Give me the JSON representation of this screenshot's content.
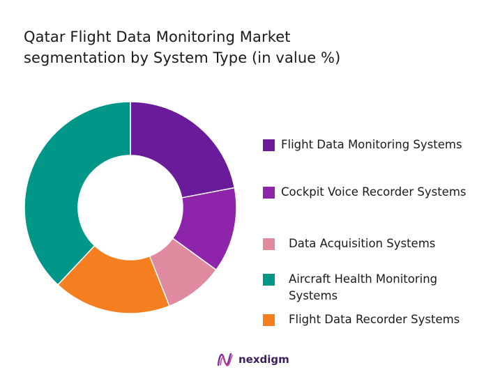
{
  "title_lines": [
    "Qatar Flight Data Monitoring Market",
    "segmentation by System Type (in value %)"
  ],
  "brand": {
    "name": "nexdigm",
    "logo_icon": "nexdigm-logo-icon"
  },
  "chart_data": {
    "type": "pie",
    "donut": true,
    "title": "Qatar Flight Data Monitoring Market segmentation by System Type (in value %)",
    "legend_position": "right",
    "categories": [
      "Flight Data Monitoring Systems",
      "Cockpit Voice Recorder Systems",
      "Data Acquisition Systems",
      "Aircraft Health Monitoring Systems",
      "Flight Data Recorder Systems"
    ],
    "values": [
      22,
      13,
      9,
      38,
      18
    ],
    "colors": [
      "#6a1b9a",
      "#8e24aa",
      "#e08aa0",
      "#009688",
      "#f47f20"
    ],
    "draw_order": [
      0,
      1,
      2,
      4,
      3
    ]
  }
}
